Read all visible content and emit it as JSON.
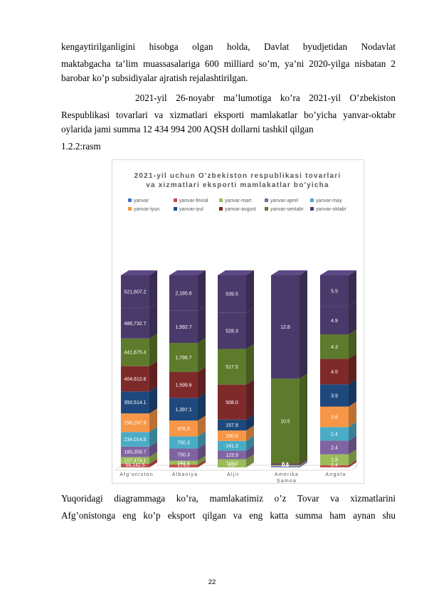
{
  "text": {
    "p1_l1": "kengaytirilganligini hisobga olgan holda, Davlat byudjetidan Nodavlat",
    "p1_l2": "maktabgacha ta’lim muassasalariga 600 milliard so’m, ya’ni 2020-yilga nisbatan 2",
    "p1_l3": "barobar ko’p subsidiyalar ajratish rejalashtirilgan.",
    "p2_l1": "2021-yil 26-noyabr ma’lumotiga ko’ra 2021-yil O’zbekiston",
    "p2_l2": "Respublikasi tovarlari va xizmatlari eksporti mamlakatlar bo’yicha yanvar-oktabr",
    "p2_l3": "oylarida jami summa 12 434 994 200 AQSH dollarni tashkil qilgan",
    "fig_ref": "1.2.2:rasm",
    "p3_l1": "Yuqoridagi diagrammaga ko’ra, mamlakatimiz o’z Tovar va xizmatlarini",
    "p3_l2": "Afg’onistonga eng ko’p eksport qilgan va eng katta summa ham aynan shu",
    "page_number": "22"
  },
  "chart_data": {
    "type": "bar",
    "stacked": true,
    "style": "3d-stacked-column-normalized",
    "title": "2021-yil uchun O'zbekiston respublikasi tovarlari va xizmatlari eksporti mamlakatlar bo'yicha",
    "title_lines": [
      "2021-yil uchun O'zbekiston respublikasi tovarlari",
      "va xizmatlari eksporti mamlakatlar bo'yicha"
    ],
    "legend_position": "top",
    "categories": [
      "Afg'oniston",
      "Albaniya",
      "Aljir",
      "Amerika Samoa",
      "Angola"
    ],
    "category_lines": [
      [
        "Afg'oniston"
      ],
      [
        "Albaniya"
      ],
      [
        "Aljir"
      ],
      [
        "Amerika",
        "Samoa"
      ],
      [
        "Angola"
      ]
    ],
    "series": [
      {
        "name": "yanvar",
        "color": "#4472c4",
        "values": [
          null,
          null,
          null,
          null,
          null
        ]
      },
      {
        "name": "yanvar-fevral",
        "color": "#c0504d",
        "values": [
          58142.5,
          173.2,
          0.0,
          0.0,
          0.4
        ]
      },
      {
        "name": "yanvar-mart",
        "color": "#9bbb59",
        "values": [
          107474.1,
          242.1,
          119.0,
          0.0,
          1.9
        ]
      },
      {
        "name": "yanvar-aprel",
        "color": "#8064a2",
        "values": [
          165359.7,
          750.3,
          123.9,
          0.1,
          2.4
        ]
      },
      {
        "name": "yanvar-may",
        "color": "#4bacc6",
        "values": [
          234014.5,
          750.3,
          141.3,
          0.1,
          2.4
        ]
      },
      {
        "name": "yanvar-iyun",
        "color": "#f79646",
        "values": [
          296297.9,
          976.3,
          150.6,
          0.1,
          3.6
        ]
      },
      {
        "name": "yanvar-iyul",
        "color": "#1f497d",
        "values": [
          350514.1,
          1397.1,
          157.9,
          0.1,
          3.9
        ]
      },
      {
        "name": "yanvar-avgust",
        "color": "#7f2a2a",
        "values": [
          404612.6,
          1599.6,
          508.0,
          0.1,
          4.5
        ]
      },
      {
        "name": "yanvar-sentabr",
        "color": "#5e7a2c",
        "values": [
          441875.4,
          1796.7,
          517.5,
          10.5,
          4.3
        ]
      },
      {
        "name": "yanvar-oktabr",
        "color": "#4a3a6b",
        "values": [
          486732.7,
          1992.7,
          528.3,
          12.8,
          4.9
        ]
      }
    ],
    "data_labels": [
      [
        "58,142.5",
        "107,474.1",
        "165,359.7",
        "234,014.5",
        "296,297.9",
        "350,514.1",
        "404,612.6",
        "441,875.4",
        "486,732.7",
        "521,607.2"
      ],
      [
        "173.2",
        "242.1",
        "750.3",
        "750.3",
        "976.3",
        "1,397.1",
        "1,599.6",
        "1,796.7",
        "1,992.7",
        "2,185.6"
      ],
      [
        "0.0",
        "119.0",
        "123.9",
        "141.3",
        "150.6",
        "157.9",
        "508.0",
        "517.5",
        "528.3",
        "539.5"
      ],
      [
        "0.0",
        "0.0",
        "0.1",
        "0.1",
        "0.1",
        "0.1",
        "0.1",
        "10.5",
        "12.8",
        ""
      ],
      [
        "0.4",
        "1.9",
        "2.4",
        "2.4",
        "3.6",
        "3.9",
        "4.5",
        "4.3",
        "4.9",
        "5.5"
      ]
    ],
    "segment_values": [
      [
        58142.5,
        107474.1,
        165359.7,
        234014.5,
        296297.9,
        350514.1,
        404612.6,
        441875.4,
        486732.7,
        521607.2
      ],
      [
        173.2,
        242.1,
        750.3,
        750.3,
        976.3,
        1397.1,
        1599.6,
        1796.7,
        1992.7,
        2185.6
      ],
      [
        0.0,
        119.0,
        123.9,
        141.3,
        150.6,
        157.9,
        508.0,
        517.5,
        528.3,
        539.5
      ],
      [
        0.0,
        0.0,
        0.1,
        0.1,
        0.1,
        0.1,
        0.1,
        10.5,
        12.8,
        0.0
      ],
      [
        0.4,
        1.9,
        2.4,
        2.4,
        3.6,
        3.9,
        4.5,
        4.3,
        4.9,
        5.5
      ]
    ],
    "segment_colors": [
      "#c0504d",
      "#9bbb59",
      "#8064a2",
      "#4bacc6",
      "#f79646",
      "#1f497d",
      "#7f2a2a",
      "#5e7a2c",
      "#4a3a6b",
      "#4a3a6b"
    ],
    "legend_label_color": "#595959"
  }
}
